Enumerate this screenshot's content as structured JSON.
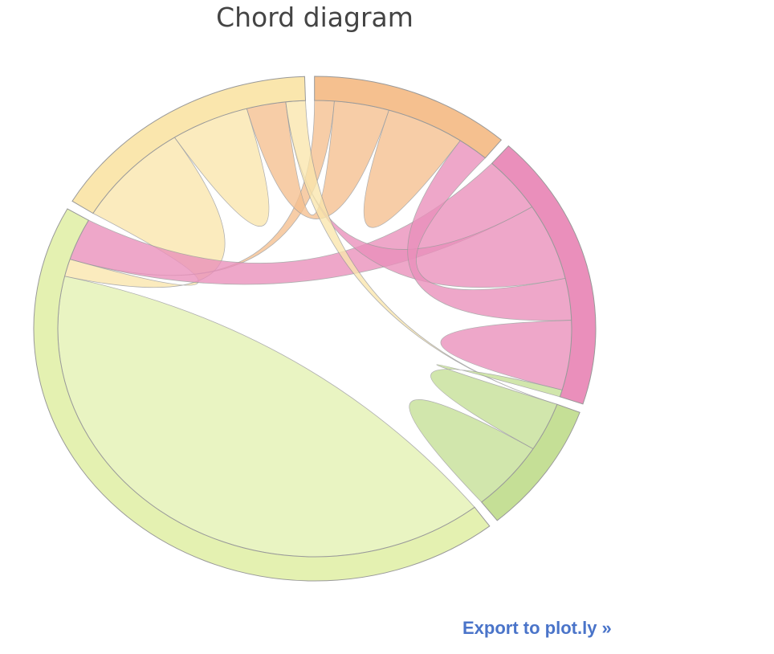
{
  "title": "Chord diagram",
  "export_link": {
    "label": "Export to plot.ly »"
  },
  "chart_data": {
    "type": "chord",
    "groups": [
      {
        "id": "g1",
        "color": "#e4f1b1"
      },
      {
        "id": "g2",
        "color": "#fae6ad"
      },
      {
        "id": "g3",
        "color": "#f5c08f"
      },
      {
        "id": "g4",
        "color": "#ea8fbb"
      },
      {
        "id": "g5",
        "color": "#c5df96"
      }
    ],
    "matrix": [
      [
        16,
        0.5,
        0,
        1.2,
        0
      ],
      [
        3,
        2,
        1,
        0,
        0.5
      ],
      [
        0.5,
        1.4,
        2,
        0.8,
        0
      ],
      [
        1.6,
        2.2,
        1.2,
        2,
        0.2
      ],
      [
        0,
        0,
        0,
        1.4,
        2
      ]
    ]
  }
}
